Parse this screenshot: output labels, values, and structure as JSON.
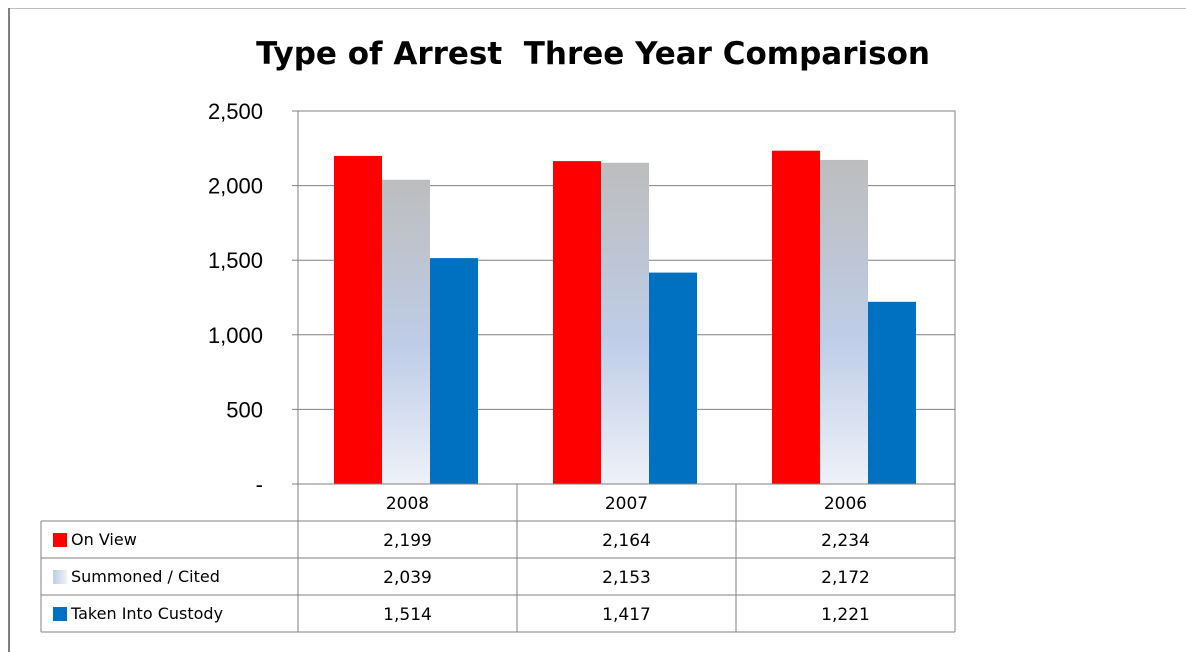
{
  "chart_data": {
    "type": "bar",
    "title": "Type of Arrest  Three Year Comparison",
    "categories": [
      "2008",
      "2007",
      "2006"
    ],
    "ylim": [
      0,
      2500
    ],
    "yticks": [
      0,
      500,
      1000,
      1500,
      2000,
      2500
    ],
    "ytick_labels": [
      "-",
      "500",
      "1,000",
      "1,500",
      "2,000",
      "2,500"
    ],
    "grid": true,
    "legend": "data-table",
    "series": [
      {
        "name": "On View",
        "values": [
          2199,
          2164,
          2234
        ],
        "value_labels": [
          "2,199",
          "2,164",
          "2,234"
        ],
        "color": "#ff0000"
      },
      {
        "name": "Summoned / Cited",
        "values": [
          2039,
          2153,
          2172
        ],
        "value_labels": [
          "2,039",
          "2,153",
          "2,172"
        ],
        "color": "#c0cfe6",
        "gradient": [
          "#bdbdbd",
          "#bfcde8",
          "#eef1f8"
        ]
      },
      {
        "name": "Taken Into Custody",
        "values": [
          1514,
          1417,
          1221
        ],
        "value_labels": [
          "1,514",
          "1,417",
          "1,221"
        ],
        "color": "#0070c0"
      }
    ]
  }
}
